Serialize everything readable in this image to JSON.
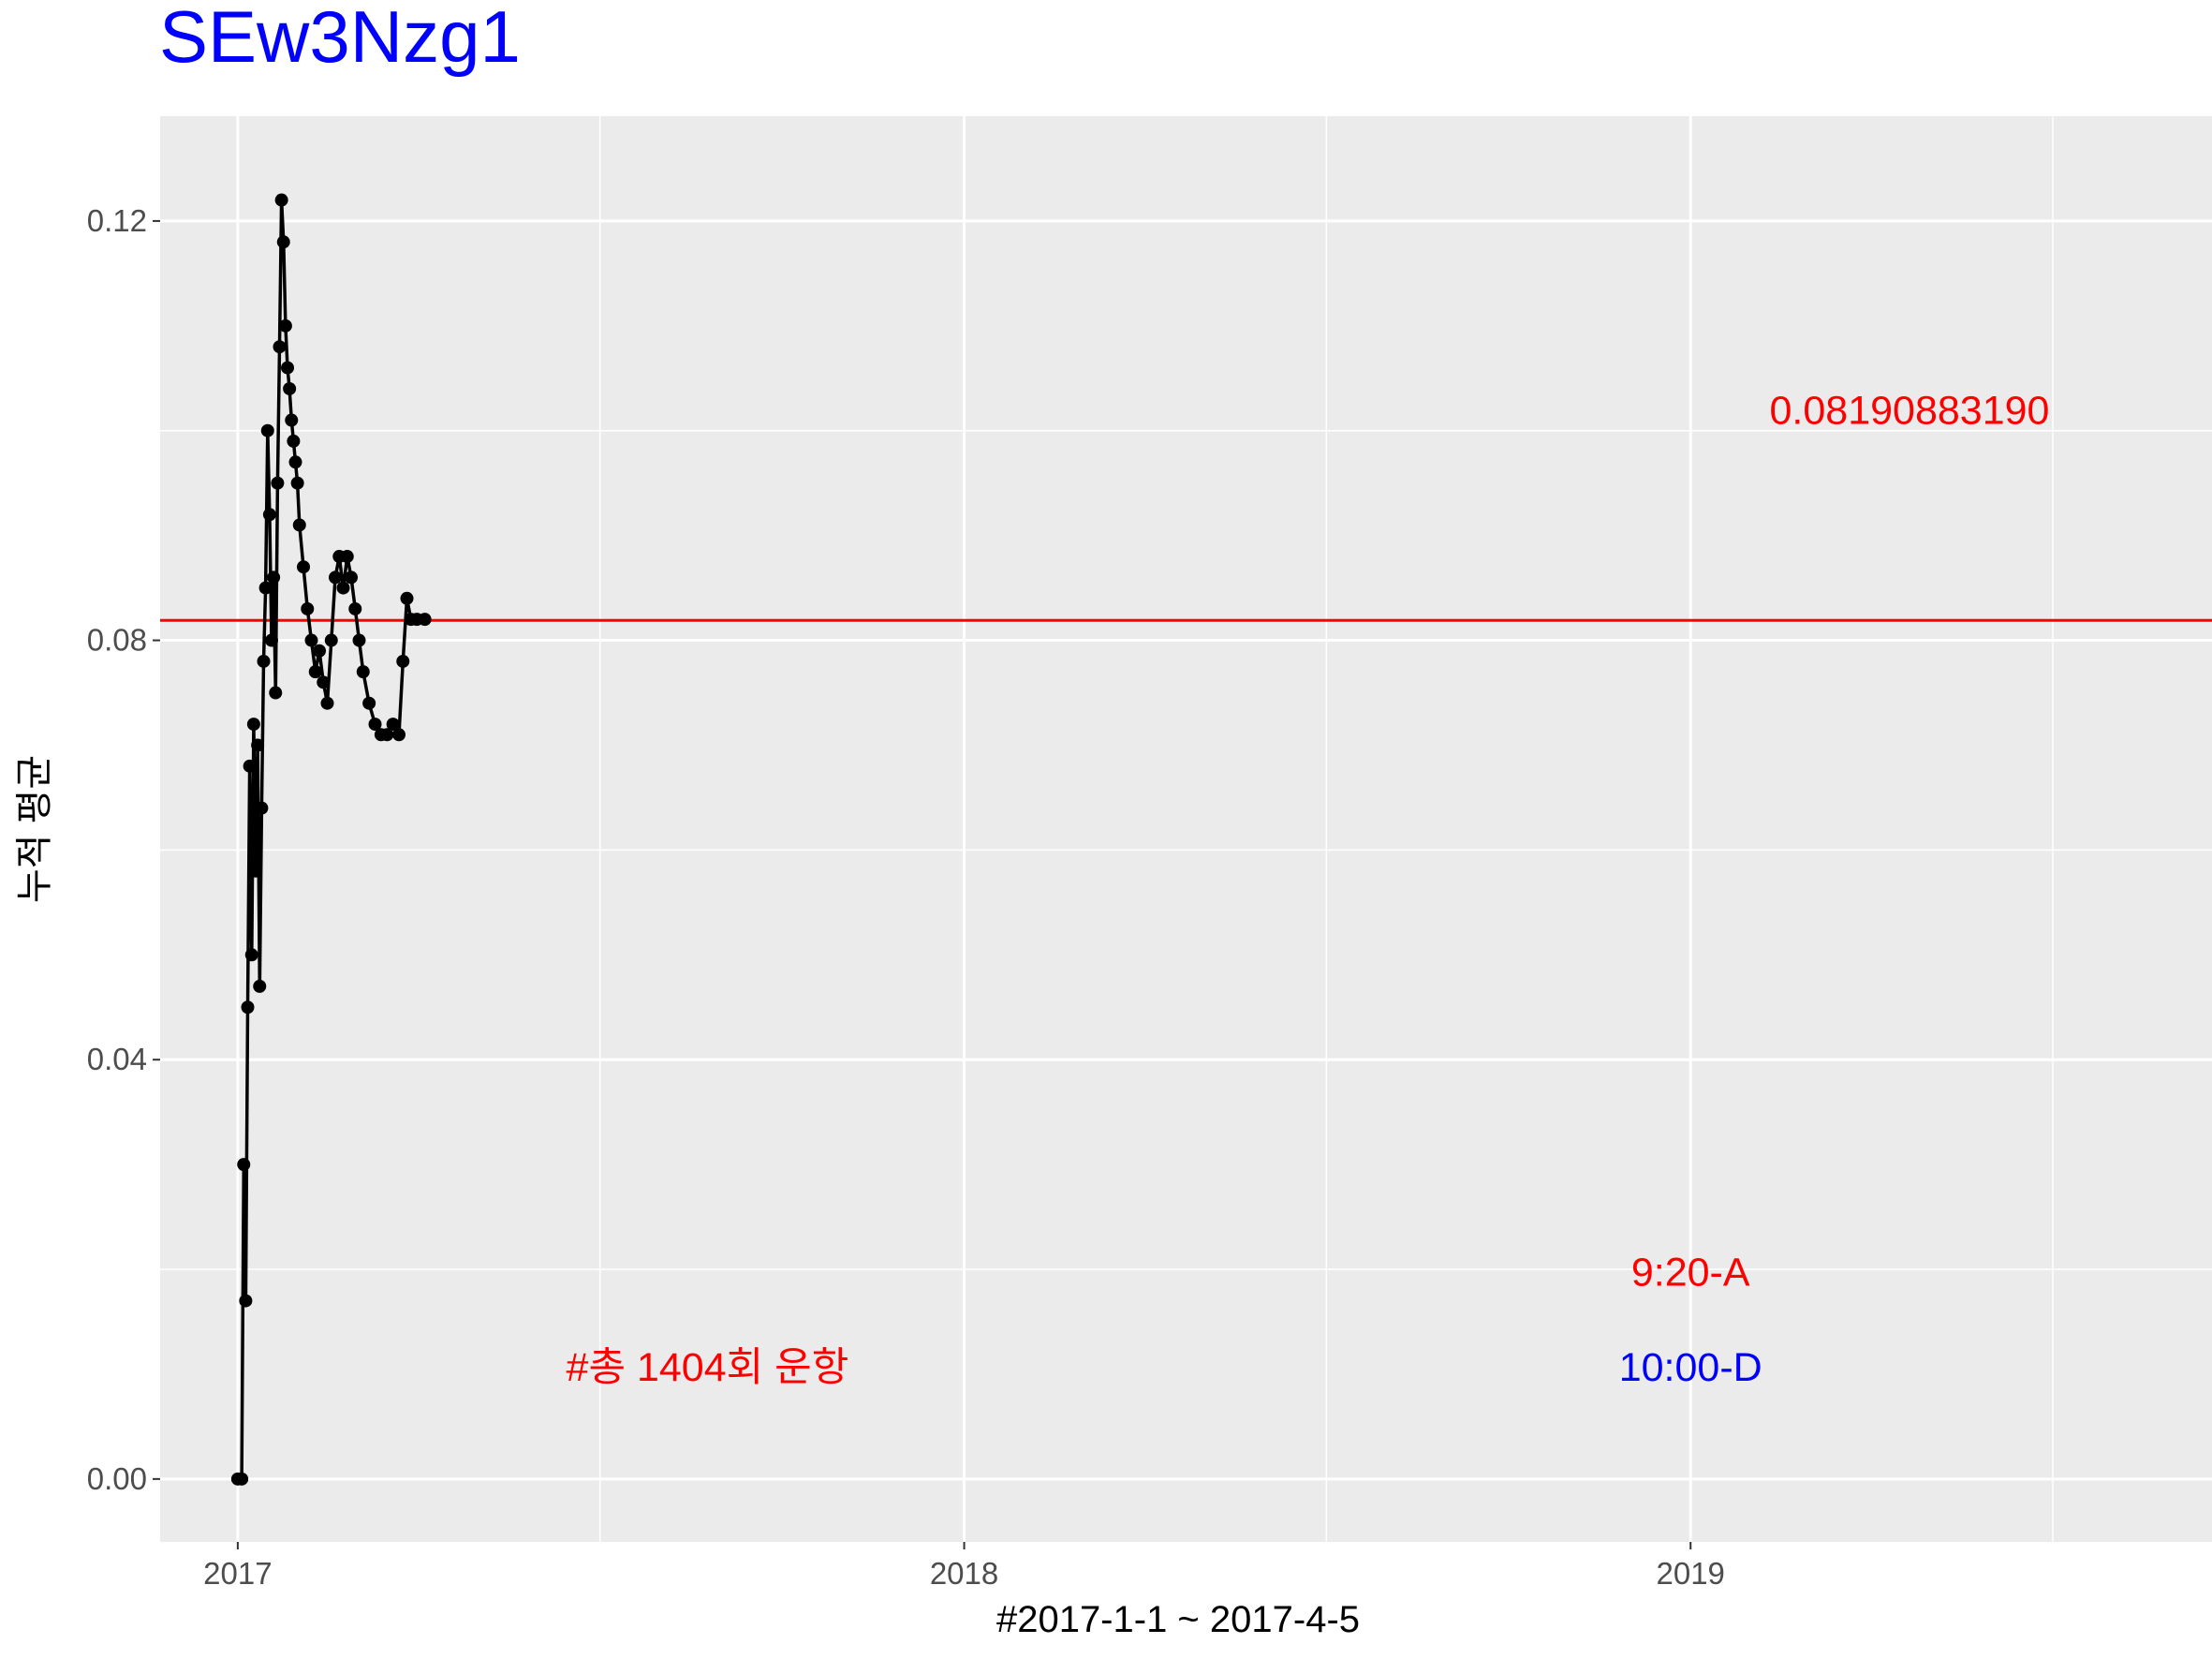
{
  "chart_data": {
    "type": "line",
    "title": "SEw3Nzg1",
    "xlabel": "#2017-1-1 ~ 2017-4-5",
    "ylabel": "누적 평균",
    "x_ticks": [
      "2017",
      "2018",
      "2019"
    ],
    "y_ticks": [
      "0.00",
      "0.04",
      "0.08",
      "0.12"
    ],
    "ylim": [
      -0.006,
      0.13
    ],
    "xlim": [
      "2016-11-23",
      "2019-09-20"
    ],
    "grid": true,
    "reference_line": {
      "value": 0.0819088319,
      "color": "#ff0000"
    },
    "series": [
      {
        "color": "#000000",
        "markers": true,
        "points": [
          [
            "2017-01-01",
            0.0
          ],
          [
            "2017-01-03",
            0.0
          ],
          [
            "2017-01-04",
            0.03
          ],
          [
            "2017-01-05",
            0.017
          ],
          [
            "2017-01-06",
            0.045
          ],
          [
            "2017-01-07",
            0.068
          ],
          [
            "2017-01-08",
            0.05
          ],
          [
            "2017-01-09",
            0.072
          ],
          [
            "2017-01-10",
            0.058
          ],
          [
            "2017-01-11",
            0.07
          ],
          [
            "2017-01-12",
            0.047
          ],
          [
            "2017-01-13",
            0.064
          ],
          [
            "2017-01-14",
            0.078
          ],
          [
            "2017-01-15",
            0.085
          ],
          [
            "2017-01-16",
            0.1
          ],
          [
            "2017-01-17",
            0.092
          ],
          [
            "2017-01-18",
            0.08
          ],
          [
            "2017-01-19",
            0.086
          ],
          [
            "2017-01-20",
            0.075
          ],
          [
            "2017-01-21",
            0.095
          ],
          [
            "2017-01-22",
            0.108
          ],
          [
            "2017-01-23",
            0.122
          ],
          [
            "2017-01-24",
            0.118
          ],
          [
            "2017-01-25",
            0.11
          ],
          [
            "2017-01-26",
            0.106
          ],
          [
            "2017-01-27",
            0.104
          ],
          [
            "2017-01-28",
            0.101
          ],
          [
            "2017-01-29",
            0.099
          ],
          [
            "2017-01-30",
            0.097
          ],
          [
            "2017-01-31",
            0.095
          ],
          [
            "2017-02-01",
            0.091
          ],
          [
            "2017-02-03",
            0.087
          ],
          [
            "2017-02-05",
            0.083
          ],
          [
            "2017-02-07",
            0.08
          ],
          [
            "2017-02-09",
            0.077
          ],
          [
            "2017-02-11",
            0.079
          ],
          [
            "2017-02-13",
            0.076
          ],
          [
            "2017-02-15",
            0.074
          ],
          [
            "2017-02-17",
            0.08
          ],
          [
            "2017-02-19",
            0.086
          ],
          [
            "2017-02-21",
            0.088
          ],
          [
            "2017-02-23",
            0.085
          ],
          [
            "2017-02-25",
            0.088
          ],
          [
            "2017-02-27",
            0.086
          ],
          [
            "2017-03-01",
            0.083
          ],
          [
            "2017-03-03",
            0.08
          ],
          [
            "2017-03-05",
            0.077
          ],
          [
            "2017-03-08",
            0.074
          ],
          [
            "2017-03-11",
            0.072
          ],
          [
            "2017-03-14",
            0.071
          ],
          [
            "2017-03-17",
            0.071
          ],
          [
            "2017-03-20",
            0.072
          ],
          [
            "2017-03-23",
            0.071
          ],
          [
            "2017-03-25",
            0.078
          ],
          [
            "2017-03-27",
            0.084
          ],
          [
            "2017-03-29",
            0.082
          ],
          [
            "2017-04-01",
            0.082
          ],
          [
            "2017-04-05",
            0.082
          ]
        ]
      }
    ],
    "annotations": [
      {
        "text": "0.08190883190",
        "color": "#ff0000",
        "x": "2019-04-21",
        "y": 0.102
      },
      {
        "text": "9:20-A",
        "color": "#ff0000",
        "x": "2019-01-01",
        "y": 0.0198
      },
      {
        "text": "10:00-D",
        "color": "#0000ff",
        "x": "2019-01-01",
        "y": 0.0107
      },
      {
        "text": "#총 1404회 운항",
        "color": "#ff0000",
        "x": "2017-08-25",
        "y": 0.0107
      }
    ]
  }
}
